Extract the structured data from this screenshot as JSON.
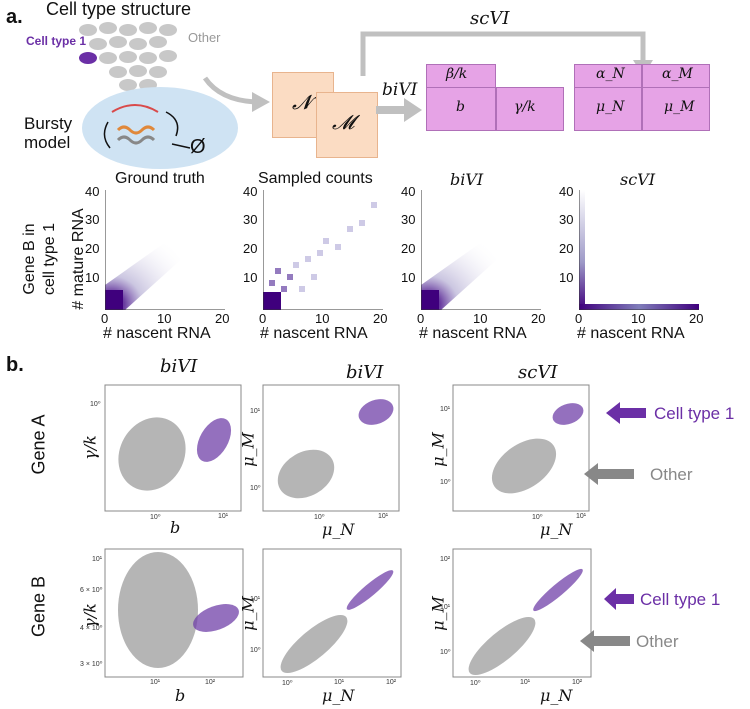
{
  "panel_a": {
    "letter": "a.",
    "cell_structure_title": "Cell type structure",
    "cell_type_1_label": "Cell type 1",
    "other_label": "Other",
    "bursty_model_label_line1": "Bursty",
    "bursty_model_label_line2": "model",
    "empty_set_symbol": "Ø",
    "scvi_label": "scVI",
    "bivi_arrow_label": "biVI",
    "encoder_n": "𝓝",
    "encoder_m": "𝓜",
    "bivi_params": {
      "top": "β/k",
      "b": "b",
      "gamma": "γ/k"
    },
    "scvi_params": {
      "alpha_n": "α_N",
      "alpha_m": "α_M",
      "mu_n": "μ_N",
      "mu_m": "μ_M"
    },
    "heatmaps": {
      "titles": [
        "Ground truth",
        "Sampled counts",
        "biVI",
        "scVI"
      ],
      "ylabel_line1": "Gene B in",
      "ylabel_line2": "cell type 1",
      "ylabel_axis": "# mature RNA",
      "xlabel": "# nascent RNA",
      "x_ticks": [
        "0",
        "10",
        "20"
      ],
      "y_ticks": [
        "40",
        "30",
        "20",
        "10"
      ]
    }
  },
  "panel_b": {
    "letter": "b.",
    "column_titles": [
      "biVI",
      "biVI",
      "scVI"
    ],
    "row_labels": [
      "Gene A",
      "Gene B"
    ],
    "legend_cell_type_1": "Cell type 1",
    "legend_other": "Other",
    "axes": {
      "b_xlabel": "b",
      "gamma_ylabel": "γ/k",
      "mu_n": "μ_N",
      "mu_m": "μ_M"
    },
    "ticks": {
      "e0": "10⁰",
      "e1": "10¹",
      "e2": "10²",
      "gB_6": "6 × 10⁰",
      "gB_4": "4 × 10⁰",
      "gB_3": "3 × 10⁰"
    }
  },
  "colors": {
    "purple": "#6b2fa6",
    "gray": "#999999",
    "pink": "#e6a3e6",
    "orange": "#fbdcc3"
  }
}
